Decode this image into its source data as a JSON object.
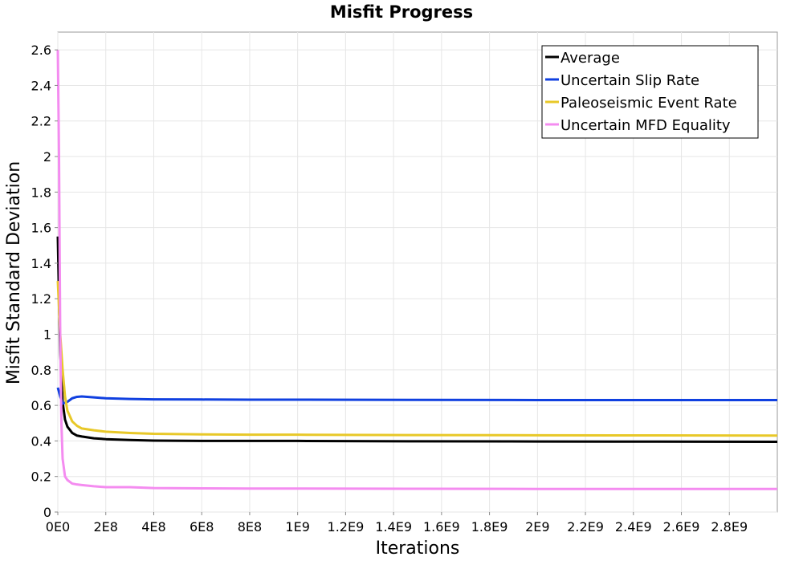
{
  "chart_data": {
    "type": "line",
    "title": "Misfit Progress",
    "xlabel": "Iterations",
    "ylabel": "Misfit Standard Deviation",
    "xlim": [
      0,
      3000000000
    ],
    "ylim": [
      0,
      2.7
    ],
    "grid": true,
    "legend_position": "top-right",
    "x_ticks": [
      {
        "value": 0,
        "label": "0E0"
      },
      {
        "value": 200000000,
        "label": "2E8"
      },
      {
        "value": 400000000,
        "label": "4E8"
      },
      {
        "value": 600000000,
        "label": "6E8"
      },
      {
        "value": 800000000,
        "label": "8E8"
      },
      {
        "value": 1000000000,
        "label": "1E9"
      },
      {
        "value": 1200000000,
        "label": "1.2E9"
      },
      {
        "value": 1400000000,
        "label": "1.4E9"
      },
      {
        "value": 1600000000,
        "label": "1.6E9"
      },
      {
        "value": 1800000000,
        "label": "1.8E9"
      },
      {
        "value": 2000000000,
        "label": "2E9"
      },
      {
        "value": 2200000000,
        "label": "2.2E9"
      },
      {
        "value": 2400000000,
        "label": "2.4E9"
      },
      {
        "value": 2600000000,
        "label": "2.6E9"
      },
      {
        "value": 2800000000,
        "label": "2.8E9"
      }
    ],
    "y_ticks": [
      {
        "value": 0,
        "label": "0"
      },
      {
        "value": 0.2,
        "label": "0.2"
      },
      {
        "value": 0.4,
        "label": "0.4"
      },
      {
        "value": 0.6,
        "label": "0.6"
      },
      {
        "value": 0.8,
        "label": "0.8"
      },
      {
        "value": 1.0,
        "label": "1"
      },
      {
        "value": 1.2,
        "label": "1.2"
      },
      {
        "value": 1.4,
        "label": "1.4"
      },
      {
        "value": 1.6,
        "label": "1.6"
      },
      {
        "value": 1.8,
        "label": "1.8"
      },
      {
        "value": 2.0,
        "label": "2"
      },
      {
        "value": 2.2,
        "label": "2.2"
      },
      {
        "value": 2.4,
        "label": "2.4"
      },
      {
        "value": 2.6,
        "label": "2.6"
      }
    ],
    "series": [
      {
        "name": "Average",
        "color": "#000000",
        "points": [
          [
            0,
            1.55
          ],
          [
            5000000,
            1.2
          ],
          [
            10000000,
            0.9
          ],
          [
            20000000,
            0.62
          ],
          [
            30000000,
            0.52
          ],
          [
            40000000,
            0.48
          ],
          [
            60000000,
            0.445
          ],
          [
            80000000,
            0.43
          ],
          [
            100000000,
            0.425
          ],
          [
            150000000,
            0.415
          ],
          [
            200000000,
            0.41
          ],
          [
            300000000,
            0.405
          ],
          [
            400000000,
            0.402
          ],
          [
            600000000,
            0.4
          ],
          [
            800000000,
            0.4
          ],
          [
            1000000000,
            0.4
          ],
          [
            1500000000,
            0.398
          ],
          [
            2000000000,
            0.397
          ],
          [
            2500000000,
            0.396
          ],
          [
            3000000000,
            0.395
          ]
        ]
      },
      {
        "name": "Uncertain Slip Rate",
        "color": "#1040e0",
        "points": [
          [
            0,
            0.7
          ],
          [
            10000000,
            0.65
          ],
          [
            20000000,
            0.61
          ],
          [
            40000000,
            0.62
          ],
          [
            60000000,
            0.64
          ],
          [
            80000000,
            0.648
          ],
          [
            100000000,
            0.65
          ],
          [
            150000000,
            0.645
          ],
          [
            200000000,
            0.64
          ],
          [
            300000000,
            0.636
          ],
          [
            400000000,
            0.634
          ],
          [
            600000000,
            0.633
          ],
          [
            800000000,
            0.632
          ],
          [
            1000000000,
            0.632
          ],
          [
            1500000000,
            0.631
          ],
          [
            2000000000,
            0.63
          ],
          [
            2500000000,
            0.63
          ],
          [
            3000000000,
            0.63
          ]
        ]
      },
      {
        "name": "Paleoseismic Event Rate",
        "color": "#e8c828",
        "points": [
          [
            0,
            1.3
          ],
          [
            5000000,
            1.15
          ],
          [
            10000000,
            1.0
          ],
          [
            20000000,
            0.8
          ],
          [
            30000000,
            0.65
          ],
          [
            40000000,
            0.57
          ],
          [
            60000000,
            0.51
          ],
          [
            80000000,
            0.485
          ],
          [
            100000000,
            0.47
          ],
          [
            150000000,
            0.46
          ],
          [
            200000000,
            0.452
          ],
          [
            300000000,
            0.445
          ],
          [
            400000000,
            0.44
          ],
          [
            600000000,
            0.437
          ],
          [
            800000000,
            0.435
          ],
          [
            1000000000,
            0.435
          ],
          [
            1500000000,
            0.433
          ],
          [
            2000000000,
            0.432
          ],
          [
            2500000000,
            0.431
          ],
          [
            3000000000,
            0.43
          ]
        ]
      },
      {
        "name": "Uncertain MFD Equality",
        "color": "#f48cf0",
        "points": [
          [
            0,
            2.6
          ],
          [
            5000000,
            2.0
          ],
          [
            10000000,
            1.0
          ],
          [
            15000000,
            0.5
          ],
          [
            20000000,
            0.3
          ],
          [
            30000000,
            0.2
          ],
          [
            40000000,
            0.18
          ],
          [
            60000000,
            0.16
          ],
          [
            80000000,
            0.155
          ],
          [
            100000000,
            0.152
          ],
          [
            150000000,
            0.145
          ],
          [
            200000000,
            0.14
          ],
          [
            300000000,
            0.14
          ],
          [
            400000000,
            0.135
          ],
          [
            600000000,
            0.133
          ],
          [
            800000000,
            0.132
          ],
          [
            1000000000,
            0.132
          ],
          [
            1500000000,
            0.131
          ],
          [
            2000000000,
            0.13
          ],
          [
            2500000000,
            0.13
          ],
          [
            3000000000,
            0.13
          ]
        ]
      }
    ]
  }
}
